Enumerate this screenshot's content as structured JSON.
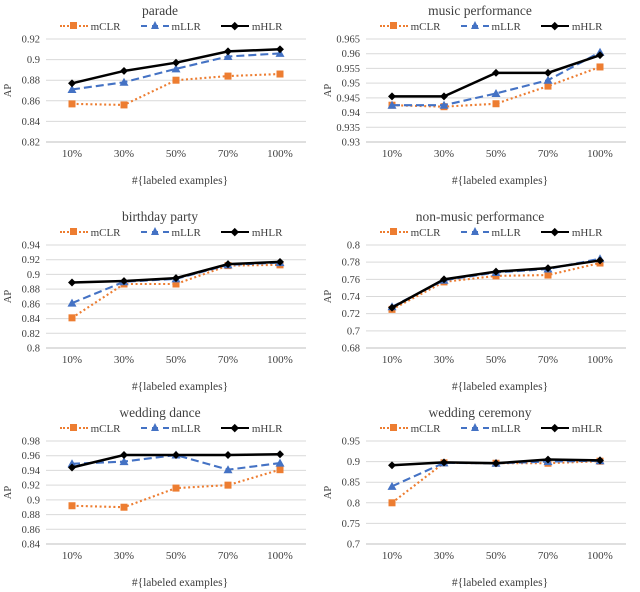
{
  "figure": {
    "series_styles": {
      "mCLR": {
        "color": "#ED7D31",
        "line": "dotted",
        "marker": "square"
      },
      "mLLR": {
        "color": "#4472C4",
        "line": "dashed",
        "marker": "triangle"
      },
      "mHLR": {
        "color": "#000000",
        "line": "solid",
        "marker": "diamond"
      }
    },
    "grid_color": "#D9D9D9",
    "axis_color": "#BFBFBF",
    "text_color": "#404040"
  },
  "chart_data": [
    {
      "type": "line",
      "title": "parade",
      "xlabel": "#{labeled examples}",
      "ylabel": "AP",
      "categories": [
        "10%",
        "30%",
        "50%",
        "70%",
        "100%"
      ],
      "ylim": [
        0.82,
        0.92
      ],
      "yticks": [
        "0.92",
        "0.9",
        "0.88",
        "0.86",
        "0.84",
        "0.82"
      ],
      "grid": true,
      "legend_position": "top",
      "series": [
        {
          "name": "mCLR",
          "values": [
            0.857,
            0.856,
            0.88,
            0.884,
            0.886
          ]
        },
        {
          "name": "mLLR",
          "values": [
            0.871,
            0.878,
            0.891,
            0.903,
            0.906
          ]
        },
        {
          "name": "mHLR",
          "values": [
            0.877,
            0.889,
            0.897,
            0.908,
            0.91
          ]
        }
      ]
    },
    {
      "type": "line",
      "title": "music performance",
      "xlabel": "#{labeled examples}",
      "ylabel": "AP",
      "categories": [
        "10%",
        "30%",
        "50%",
        "70%",
        "100%"
      ],
      "ylim": [
        0.93,
        0.965
      ],
      "yticks": [
        "0.965",
        "0.96",
        "0.955",
        "0.95",
        "0.945",
        "0.94",
        "0.935",
        "0.93"
      ],
      "grid": true,
      "legend_position": "top",
      "series": [
        {
          "name": "mCLR",
          "values": [
            0.9425,
            0.942,
            0.943,
            0.949,
            0.9555
          ]
        },
        {
          "name": "mLLR",
          "values": [
            0.9425,
            0.9425,
            0.9465,
            0.951,
            0.9605
          ]
        },
        {
          "name": "mHLR",
          "values": [
            0.9455,
            0.9455,
            0.9535,
            0.9535,
            0.9595
          ]
        }
      ]
    },
    {
      "type": "line",
      "title": "birthday party",
      "xlabel": "#{labeled examples}",
      "ylabel": "AP",
      "categories": [
        "10%",
        "30%",
        "50%",
        "70%",
        "100%"
      ],
      "ylim": [
        0.8,
        0.94
      ],
      "yticks": [
        "0.94",
        "0.92",
        "0.9",
        "0.88",
        "0.86",
        "0.84",
        "0.82",
        "0.8"
      ],
      "grid": true,
      "legend_position": "top",
      "series": [
        {
          "name": "mCLR",
          "values": [
            0.841,
            0.887,
            0.887,
            0.912,
            0.913
          ]
        },
        {
          "name": "mLLR",
          "values": [
            0.861,
            0.89,
            0.894,
            0.913,
            0.916
          ]
        },
        {
          "name": "mHLR",
          "values": [
            0.889,
            0.891,
            0.895,
            0.914,
            0.917
          ]
        }
      ]
    },
    {
      "type": "line",
      "title": "non-music performance",
      "xlabel": "#{labeled examples}",
      "ylabel": "AP",
      "categories": [
        "10%",
        "30%",
        "50%",
        "70%",
        "100%"
      ],
      "ylim": [
        0.68,
        0.8
      ],
      "yticks": [
        "0.8",
        "0.78",
        "0.76",
        "0.74",
        "0.72",
        "0.7",
        "0.68"
      ],
      "grid": true,
      "legend_position": "top",
      "series": [
        {
          "name": "mCLR",
          "values": [
            0.725,
            0.757,
            0.764,
            0.765,
            0.779
          ]
        },
        {
          "name": "mLLR",
          "values": [
            0.728,
            0.759,
            0.768,
            0.772,
            0.784
          ]
        },
        {
          "name": "mHLR",
          "values": [
            0.727,
            0.76,
            0.769,
            0.773,
            0.782
          ]
        }
      ]
    },
    {
      "type": "line",
      "title": "wedding dance",
      "xlabel": "#{labeled examples}",
      "ylabel": "AP",
      "categories": [
        "10%",
        "30%",
        "50%",
        "70%",
        "100%"
      ],
      "ylim": [
        0.84,
        0.98
      ],
      "yticks": [
        "0.98",
        "0.96",
        "0.94",
        "0.92",
        "0.9",
        "0.88",
        "0.86",
        "0.84"
      ],
      "grid": true,
      "legend_position": "top",
      "series": [
        {
          "name": "mCLR",
          "values": [
            0.892,
            0.89,
            0.916,
            0.92,
            0.941
          ]
        },
        {
          "name": "mLLR",
          "values": [
            0.949,
            0.952,
            0.961,
            0.941,
            0.95
          ]
        },
        {
          "name": "mHLR",
          "values": [
            0.944,
            0.961,
            0.961,
            0.961,
            0.962
          ]
        }
      ]
    },
    {
      "type": "line",
      "title": "wedding ceremony",
      "xlabel": "#{labeled examples}",
      "ylabel": "AP",
      "categories": [
        "10%",
        "30%",
        "50%",
        "70%",
        "100%"
      ],
      "ylim": [
        0.7,
        0.95
      ],
      "yticks": [
        "0.95",
        "0.9",
        "0.85",
        "0.8",
        "0.75",
        "0.7"
      ],
      "grid": true,
      "legend_position": "top",
      "series": [
        {
          "name": "mCLR",
          "values": [
            0.8,
            0.897,
            0.896,
            0.896,
            0.901
          ]
        },
        {
          "name": "mLLR",
          "values": [
            0.84,
            0.897,
            0.896,
            0.9,
            0.902
          ]
        },
        {
          "name": "mHLR",
          "values": [
            0.891,
            0.898,
            0.896,
            0.905,
            0.903
          ]
        }
      ]
    }
  ]
}
